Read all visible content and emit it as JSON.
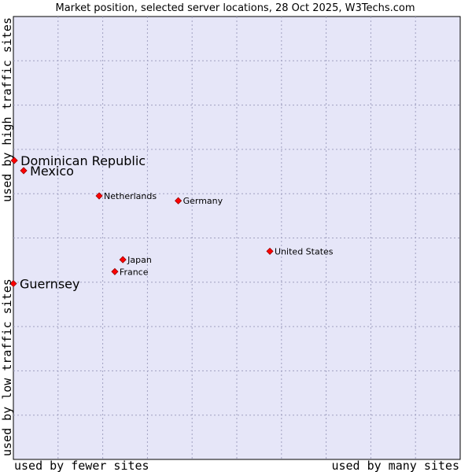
{
  "chart_data": {
    "type": "scatter",
    "title": "Market position, selected server locations, 28 Oct 2025, W3Techs.com",
    "xlabel_left": "used by fewer sites",
    "xlabel_right": "used by many sites",
    "ylabel_low": "used by low traffic sites",
    "ylabel_high": "used by high traffic sites",
    "xlim": [
      0,
      100
    ],
    "ylim": [
      0,
      100
    ],
    "grid": true,
    "marker_color": "#ff0000",
    "background_color": "#e6e6f8",
    "points": [
      {
        "label": "Dominican Republic",
        "x": 0.2,
        "y": 67.5,
        "highlight": true
      },
      {
        "label": "Mexico",
        "x": 2.3,
        "y": 65.2,
        "highlight": true
      },
      {
        "label": "Netherlands",
        "x": 19.2,
        "y": 59.5,
        "highlight": false
      },
      {
        "label": "Germany",
        "x": 36.9,
        "y": 58.4,
        "highlight": false
      },
      {
        "label": "United States",
        "x": 57.4,
        "y": 47.0,
        "highlight": false
      },
      {
        "label": "Japan",
        "x": 24.5,
        "y": 45.1,
        "highlight": false
      },
      {
        "label": "France",
        "x": 22.7,
        "y": 42.4,
        "highlight": false
      },
      {
        "label": "Guernsey",
        "x": 0.0,
        "y": 39.7,
        "highlight": true
      }
    ]
  }
}
